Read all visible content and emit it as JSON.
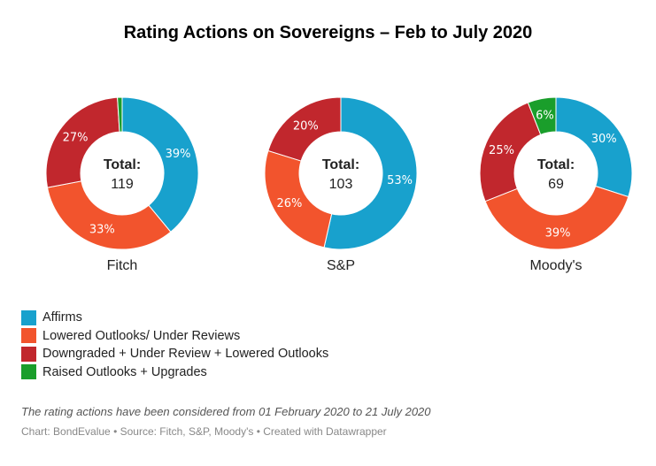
{
  "title": "Rating Actions on Sovereigns – Feb to July 2020",
  "total_label": "Total:",
  "chart_data": [
    {
      "type": "pie",
      "name": "Fitch",
      "total": 119,
      "categories": [
        "Affirms",
        "Lowered Outlooks/ Under Reviews",
        "Downgraded + Under Review + Lowered Outlooks",
        "Raised Outlooks + Upgrades"
      ],
      "values": [
        39,
        33,
        27,
        1
      ],
      "labels": [
        "39%",
        "33%",
        "27%",
        ""
      ]
    },
    {
      "type": "pie",
      "name": "S&P",
      "total": 103,
      "categories": [
        "Affirms",
        "Lowered Outlooks/ Under Reviews",
        "Downgraded + Under Review + Lowered Outlooks",
        "Raised Outlooks + Upgrades"
      ],
      "values": [
        53,
        26,
        20,
        0
      ],
      "labels": [
        "53%",
        "26%",
        "20%",
        ""
      ]
    },
    {
      "type": "pie",
      "name": "Moody's",
      "total": 69,
      "categories": [
        "Affirms",
        "Lowered Outlooks/ Under Reviews",
        "Downgraded + Under Review + Lowered Outlooks",
        "Raised Outlooks + Upgrades"
      ],
      "values": [
        30,
        39,
        25,
        6
      ],
      "labels": [
        "30%",
        "39%",
        "25%",
        "6%"
      ]
    }
  ],
  "colors": [
    "#18a1cd",
    "#f2542d",
    "#c1272d",
    "#1a9e2b"
  ],
  "legend": [
    {
      "label": "Affirms",
      "color": "#18a1cd"
    },
    {
      "label": "Lowered Outlooks/ Under Reviews",
      "color": "#f2542d"
    },
    {
      "label": "Downgraded + Under Review + Lowered Outlooks",
      "color": "#c1272d"
    },
    {
      "label": "Raised Outlooks + Upgrades",
      "color": "#1a9e2b"
    }
  ],
  "note": "The rating actions have been considered from 01 February 2020 to 21 July 2020",
  "credit": "Chart: BondEvalue • Source: Fitch, S&P, Moody's • Created with Datawrapper"
}
